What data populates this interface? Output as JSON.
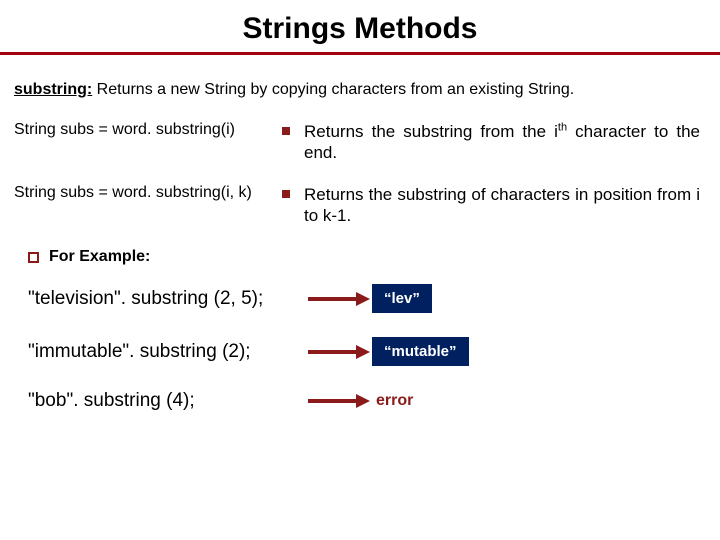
{
  "title": "Strings Methods",
  "intro": {
    "keyword": "substring:",
    "rest": " Returns a new String by copying characters from an existing String."
  },
  "methods": [
    {
      "signature": "String subs = word. substring(i)",
      "desc_pre": "Returns the substring from the i",
      "desc_sup": "th",
      "desc_post": " character to the end."
    },
    {
      "signature": "String subs = word. substring(i, k)",
      "desc_pre": "Returns the substring of characters in position from i to k-1.",
      "desc_sup": "",
      "desc_post": ""
    }
  ],
  "for_example_label": "For Example:",
  "examples": [
    {
      "call": "\"television\". substring (2, 5);",
      "result": "“lev”",
      "is_error": false
    },
    {
      "call": "\"immutable\". substring (2);",
      "result": "“mutable”",
      "is_error": false
    },
    {
      "call": "\"bob\". substring (4);",
      "result": "error",
      "is_error": true
    }
  ],
  "colors": {
    "rule": "#a1000f",
    "bullet": "#8b1a1a",
    "result_bg": "#002060",
    "error_text": "#8b1a1a"
  }
}
